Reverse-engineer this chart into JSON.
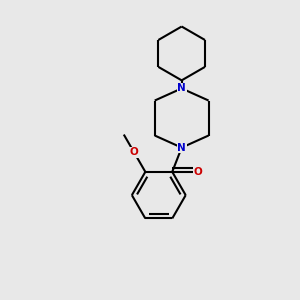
{
  "background_color": "#e8e8e8",
  "bond_color": "#000000",
  "N_color": "#0000cc",
  "O_color": "#cc0000",
  "line_width": 1.5,
  "figsize": [
    3.0,
    3.0
  ],
  "dpi": 100,
  "xlim": [
    0.05,
    0.95
  ],
  "ylim": [
    0.05,
    0.98
  ]
}
